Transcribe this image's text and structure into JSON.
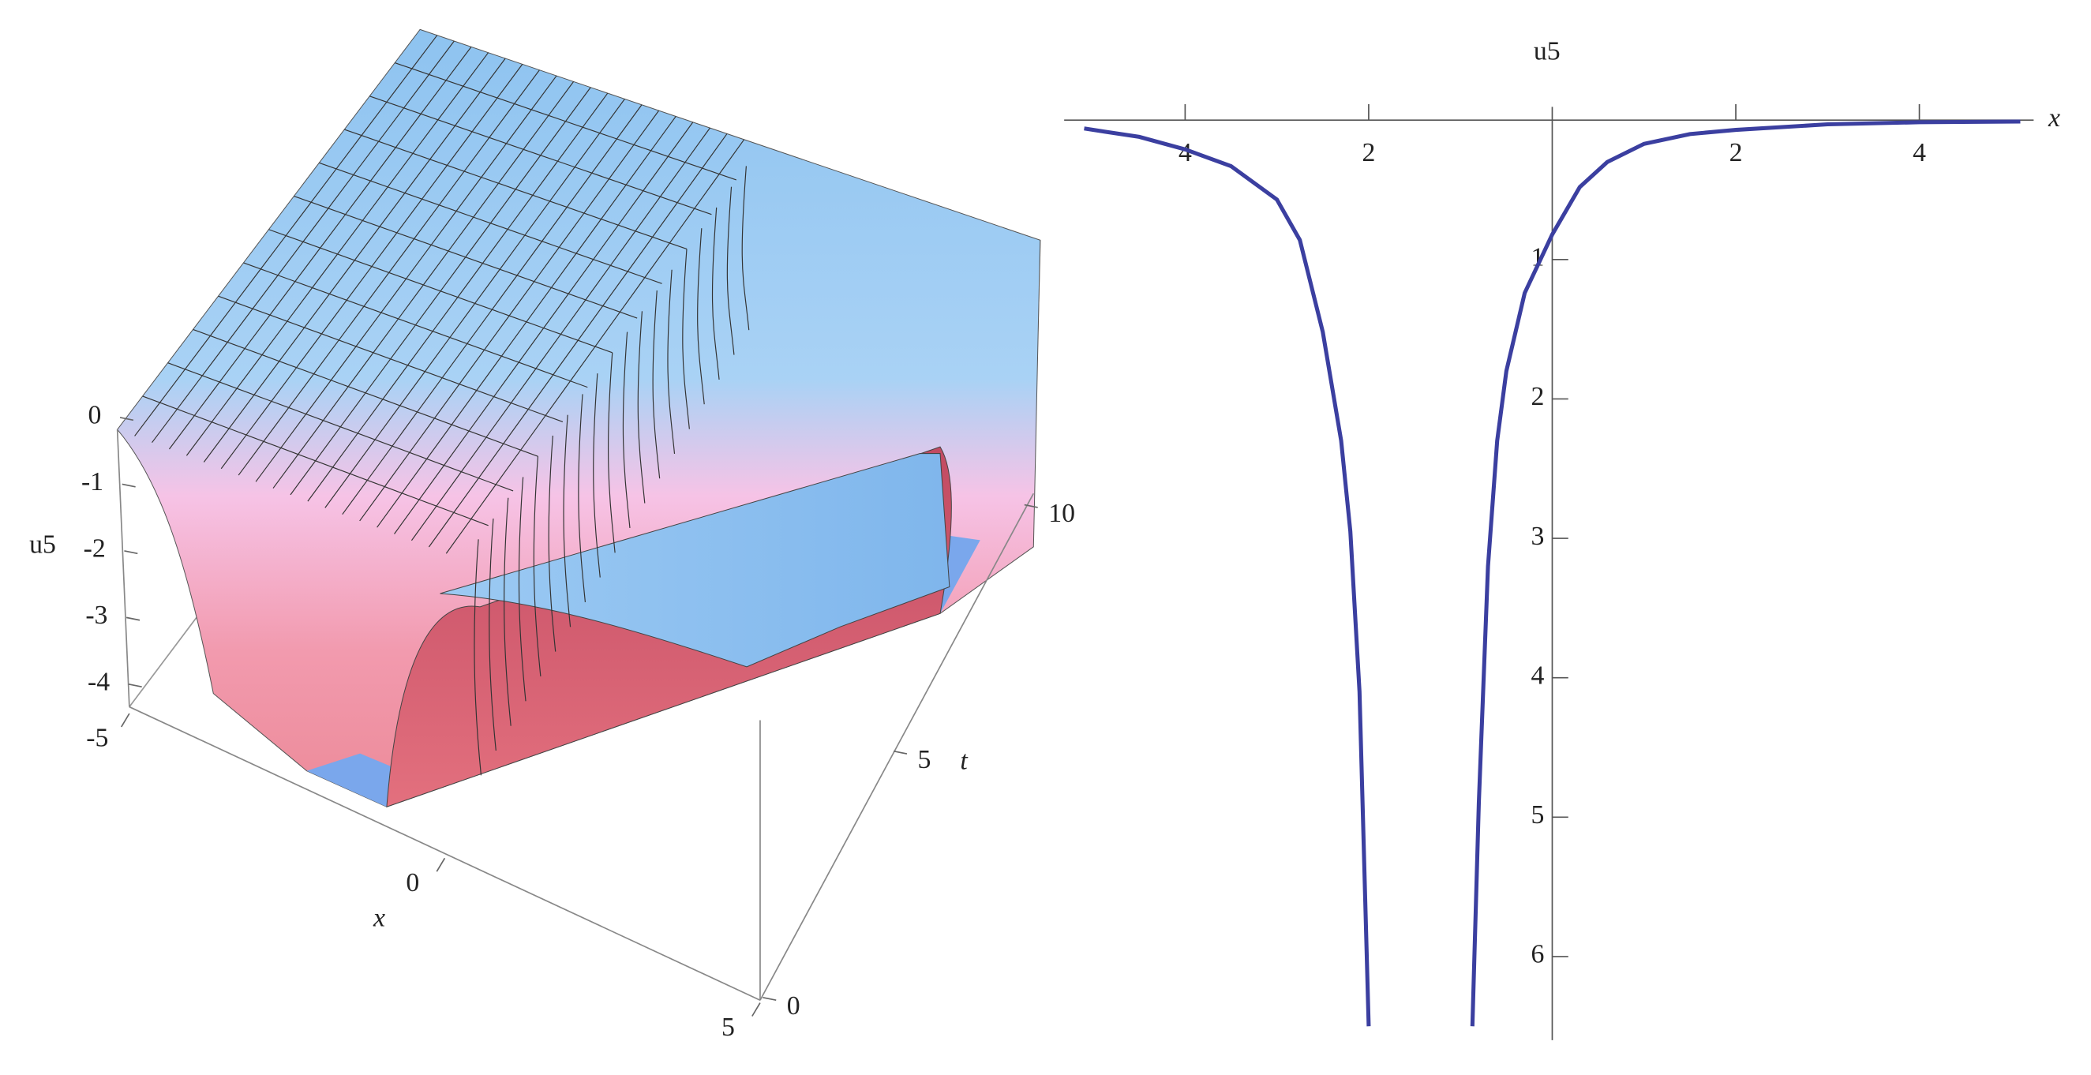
{
  "chart_data": [
    {
      "type": "surface3d",
      "xlabel": "x",
      "ylabel": "t",
      "zlabel": "u5",
      "xlim": [
        -5,
        5
      ],
      "xticks": [
        -5,
        0,
        5
      ],
      "ylim": [
        0,
        10.5
      ],
      "yticks": [
        0,
        5,
        10
      ],
      "zlim": [
        -4.4,
        0
      ],
      "zticks": [
        0,
        -1,
        -2,
        -3,
        -4
      ]
    },
    {
      "type": "line",
      "xlabel": "x",
      "ylabel": "u5",
      "color": "#3b3fa0",
      "x": [
        -5.1,
        -4.5,
        -4,
        -3.5,
        -3,
        -2.75,
        -2.5,
        -2.3,
        -2.2,
        -2.1,
        -2.0,
        -1.44,
        -0.87,
        -0.8,
        -0.7,
        -0.6,
        -0.5,
        -0.3,
        0,
        0.3,
        0.6,
        1,
        1.5,
        2,
        3,
        4,
        5.1
      ],
      "values": [
        -0.06,
        -0.12,
        -0.21,
        -0.33,
        -0.57,
        -0.86,
        -1.52,
        -2.3,
        -2.95,
        -4.1,
        -6.5,
        null,
        -6.5,
        -4.9,
        -3.2,
        -2.3,
        -1.8,
        -1.24,
        -0.82,
        -0.48,
        -0.3,
        -0.17,
        -0.1,
        -0.07,
        -0.03,
        -0.015,
        -0.01
      ],
      "xlim": [
        -5.1,
        5.1
      ],
      "xticks": [
        {
          "value": -4,
          "label": "4"
        },
        {
          "value": -2,
          "label": "2"
        },
        2,
        4
      ],
      "ylim": [
        -6.6,
        0
      ],
      "yticks": [
        {
          "value": -1,
          "label": "1"
        },
        {
          "value": -2,
          "label": "2"
        },
        {
          "value": -3,
          "label": "3"
        },
        {
          "value": -4,
          "label": "4"
        },
        {
          "value": -5,
          "label": "5"
        },
        {
          "value": -6,
          "label": "6"
        }
      ]
    }
  ]
}
